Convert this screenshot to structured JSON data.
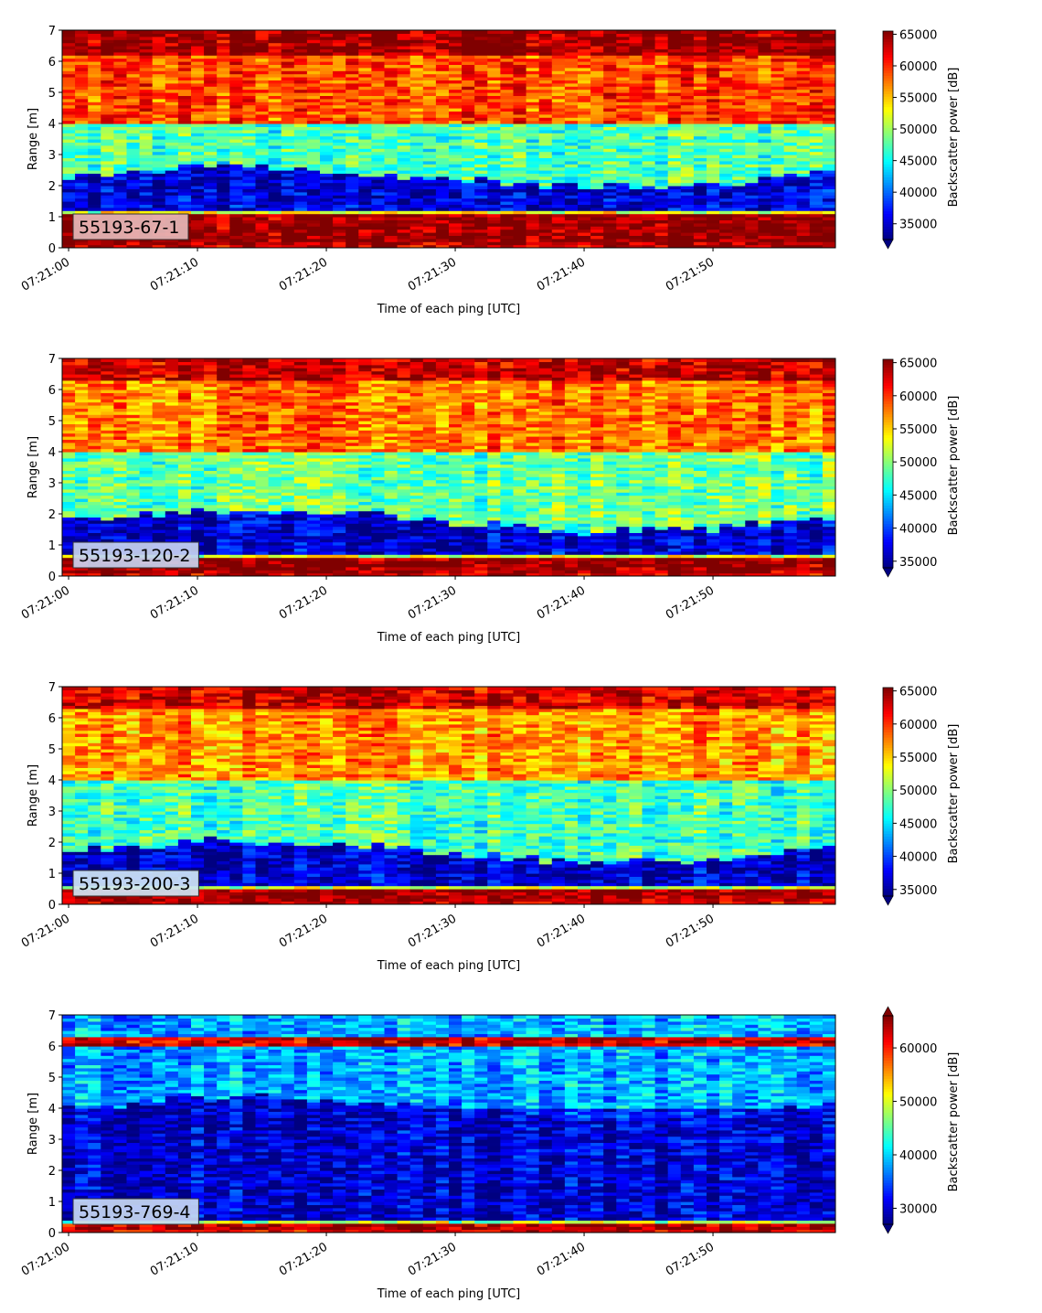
{
  "chart_data": [
    {
      "type": "heatmap",
      "label": "55193-67-1",
      "label_bg": "#e6b8b8",
      "xlabel": "Time of each ping [UTC]",
      "ylabel": "Range [m]",
      "ylim": [
        0,
        7
      ],
      "yticks": [
        "0",
        "1",
        "2",
        "3",
        "4",
        "5",
        "6",
        "7"
      ],
      "xticks": [
        "07:21:00",
        "07:21:10",
        "07:21:20",
        "07:21:30",
        "07:21:40",
        "07:21:50"
      ],
      "time_range_s": [
        -0.5,
        59.5
      ],
      "colorbar_label": "Backscatter power [dB]",
      "colorbar_ticks": [
        "35000",
        "40000",
        "45000",
        "50000",
        "55000",
        "60000",
        "65000"
      ],
      "vmin": 32500,
      "vmax": 65500,
      "extend": "min",
      "colormap": "jet",
      "profile": {
        "floor_band": [
          0.2,
          1.1
        ],
        "floor_value": 65000,
        "lower_dark_top": 2.3,
        "mid_value": 47000,
        "upper_value": 59000,
        "top_band": [
          6.2,
          7.0
        ],
        "top_value": 64500
      }
    },
    {
      "type": "heatmap",
      "label": "55193-120-2",
      "label_bg": "#c7d3f0",
      "xlabel": "Time of each ping [UTC]",
      "ylabel": "Range [m]",
      "ylim": [
        0,
        7
      ],
      "yticks": [
        "0",
        "1",
        "2",
        "3",
        "4",
        "5",
        "6",
        "7"
      ],
      "xticks": [
        "07:21:00",
        "07:21:10",
        "07:21:20",
        "07:21:30",
        "07:21:40",
        "07:21:50"
      ],
      "time_range_s": [
        -0.5,
        59.5
      ],
      "colorbar_label": "Backscatter power [dB]",
      "colorbar_ticks": [
        "35000",
        "40000",
        "45000",
        "50000",
        "55000",
        "60000",
        "65000"
      ],
      "vmin": 34000,
      "vmax": 65500,
      "extend": "min",
      "colormap": "jet",
      "profile": {
        "floor_band": [
          0.1,
          0.6
        ],
        "floor_value": 65000,
        "lower_dark_top": 1.8,
        "mid_value": 49000,
        "upper_value": 58000,
        "top_band": [
          6.3,
          7.0
        ],
        "top_value": 63500
      }
    },
    {
      "type": "heatmap",
      "label": "55193-200-3",
      "label_bg": "#cfe6f5",
      "xlabel": "Time of each ping [UTC]",
      "ylabel": "Range [m]",
      "ylim": [
        0,
        7
      ],
      "yticks": [
        "0",
        "1",
        "2",
        "3",
        "4",
        "5",
        "6",
        "7"
      ],
      "xticks": [
        "07:21:00",
        "07:21:10",
        "07:21:20",
        "07:21:30",
        "07:21:40",
        "07:21:50"
      ],
      "time_range_s": [
        -0.5,
        59.5
      ],
      "colorbar_label": "Backscatter power [dB]",
      "colorbar_ticks": [
        "35000",
        "40000",
        "45000",
        "50000",
        "55000",
        "60000",
        "65000"
      ],
      "vmin": 34000,
      "vmax": 65500,
      "extend": "min",
      "colormap": "jet",
      "profile": {
        "floor_band": [
          0.1,
          0.45
        ],
        "floor_value": 65000,
        "lower_dark_top": 1.7,
        "mid_value": 48000,
        "upper_value": 57000,
        "top_band": [
          6.3,
          7.0
        ],
        "top_value": 63000
      }
    },
    {
      "type": "heatmap",
      "label": "55193-769-4",
      "label_bg": "#c7d8f2",
      "xlabel": "Time of each ping [UTC]",
      "ylabel": "Range [m]",
      "ylim": [
        0,
        7
      ],
      "yticks": [
        "0",
        "1",
        "2",
        "3",
        "4",
        "5",
        "6",
        "7"
      ],
      "xticks": [
        "07:21:00",
        "07:21:10",
        "07:21:20",
        "07:21:30",
        "07:21:40",
        "07:21:50"
      ],
      "time_range_s": [
        -0.5,
        59.5
      ],
      "colorbar_label": "Backscatter power [dB]",
      "colorbar_ticks": [
        "30000",
        "40000",
        "50000",
        "60000"
      ],
      "vmin": 27000,
      "vmax": 66000,
      "extend": "both",
      "colormap": "jet",
      "profile": {
        "floor_band": [
          0.05,
          0.3
        ],
        "floor_value": 64000,
        "lower_dark_top": 4.0,
        "mid_value": 33000,
        "upper_value": 38500,
        "top_band": [
          6.0,
          6.35
        ],
        "top_value": 63000
      }
    }
  ]
}
